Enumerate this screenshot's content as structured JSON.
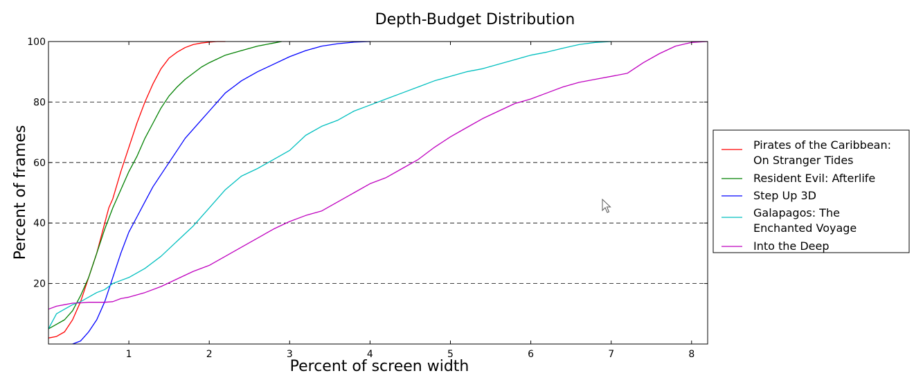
{
  "chart_data": {
    "type": "line",
    "title": "Depth-Budget Distribution",
    "xlabel": "Percent of screen width",
    "ylabel": "Percent of frames",
    "xlim": [
      0,
      8.2
    ],
    "ylim": [
      0,
      100
    ],
    "x_ticks": [
      "1",
      "2",
      "3",
      "4",
      "5",
      "6",
      "7",
      "8"
    ],
    "x_tick_values": [
      1,
      2,
      3,
      4,
      5,
      6,
      7,
      8
    ],
    "y_ticks": [
      "20",
      "40",
      "60",
      "80",
      "100"
    ],
    "y_tick_values": [
      20,
      40,
      60,
      80,
      100
    ],
    "grid": "horizontal dashed",
    "legend_position": "center-right, outside plot",
    "series": [
      {
        "name": "Pirates of the Caribbean:\nOn Stranger Tides",
        "color": "#ff0000",
        "x": [
          0,
          0.1,
          0.2,
          0.3,
          0.4,
          0.5,
          0.6,
          0.7,
          0.75,
          0.8,
          0.9,
          1.0,
          1.1,
          1.2,
          1.3,
          1.4,
          1.5,
          1.6,
          1.7,
          1.8,
          1.9,
          2.0,
          2.1,
          2.2
        ],
        "y": [
          2,
          2.5,
          4,
          8,
          14,
          22,
          30,
          40,
          45,
          48,
          57,
          65,
          73,
          80,
          86,
          91,
          94.5,
          96.5,
          98,
          99,
          99.5,
          99.8,
          100,
          100
        ]
      },
      {
        "name": "Resident Evil: Afterlife",
        "color": "#008000",
        "x": [
          0,
          0.1,
          0.2,
          0.3,
          0.4,
          0.5,
          0.6,
          0.7,
          0.8,
          0.9,
          1.0,
          1.1,
          1.2,
          1.3,
          1.4,
          1.5,
          1.6,
          1.7,
          1.8,
          1.9,
          2.0,
          2.2,
          2.4,
          2.6,
          2.8,
          2.9
        ],
        "y": [
          5,
          6.5,
          8,
          11,
          16,
          22,
          30,
          38,
          45,
          51,
          57,
          62,
          68,
          73,
          78,
          82,
          85,
          87.5,
          89.5,
          91.5,
          93,
          95.5,
          97,
          98.5,
          99.5,
          100
        ]
      },
      {
        "name": "Step Up 3D",
        "color": "#0000ff",
        "x": [
          0.3,
          0.4,
          0.5,
          0.6,
          0.7,
          0.8,
          0.9,
          1.0,
          1.1,
          1.2,
          1.3,
          1.4,
          1.5,
          1.6,
          1.7,
          1.8,
          1.9,
          2.0,
          2.1,
          2.2,
          2.3,
          2.4,
          2.6,
          2.8,
          3.0,
          3.2,
          3.4,
          3.6,
          3.8,
          4.0
        ],
        "y": [
          0,
          1,
          4,
          8,
          14,
          22,
          30,
          37,
          42,
          47,
          52,
          56,
          60,
          64,
          68,
          71,
          74,
          77,
          80,
          83,
          85,
          87,
          90,
          92.5,
          95,
          97,
          98.5,
          99.3,
          99.8,
          100
        ]
      },
      {
        "name": "Galapagos: The\nEnchanted Voyage",
        "color": "#00bfbf",
        "x": [
          0,
          0.1,
          0.2,
          0.3,
          0.4,
          0.5,
          0.6,
          0.7,
          0.8,
          0.9,
          1.0,
          1.2,
          1.4,
          1.6,
          1.8,
          2.0,
          2.2,
          2.4,
          2.6,
          2.8,
          3.0,
          3.2,
          3.4,
          3.6,
          3.8,
          4.0,
          4.2,
          4.4,
          4.6,
          4.8,
          5.0,
          5.2,
          5.4,
          5.6,
          5.8,
          6.0,
          6.2,
          6.4,
          6.6,
          6.8,
          7.0
        ],
        "y": [
          5,
          10,
          11.5,
          13,
          14,
          15.5,
          17,
          18,
          20,
          21,
          22,
          25,
          29,
          34,
          39,
          45,
          51,
          55.5,
          58,
          61,
          64,
          69,
          72,
          74,
          77,
          79,
          81,
          83,
          85,
          87,
          88.5,
          90,
          91,
          92.5,
          94,
          95.5,
          96.5,
          97.8,
          99,
          99.7,
          100
        ]
      },
      {
        "name": "Into the Deep",
        "color": "#bf00bf",
        "x": [
          0,
          0.1,
          0.2,
          0.3,
          0.4,
          0.5,
          0.6,
          0.7,
          0.8,
          0.9,
          1.0,
          1.2,
          1.4,
          1.6,
          1.8,
          2.0,
          2.2,
          2.4,
          2.6,
          2.8,
          3.0,
          3.2,
          3.4,
          3.6,
          3.8,
          4.0,
          4.2,
          4.4,
          4.6,
          4.8,
          5.0,
          5.2,
          5.4,
          5.6,
          5.8,
          6.0,
          6.2,
          6.4,
          6.6,
          6.8,
          7.0,
          7.2,
          7.4,
          7.6,
          7.8,
          8.0,
          8.2
        ],
        "y": [
          11.5,
          12.5,
          13,
          13.5,
          13.6,
          13.8,
          13.8,
          13.8,
          14,
          15,
          15.5,
          17,
          19,
          21.5,
          24,
          26,
          29,
          32,
          35,
          38,
          40.5,
          42.5,
          44,
          47,
          50,
          53,
          55,
          58,
          61,
          65,
          68.5,
          71.5,
          74.5,
          77,
          79.5,
          81,
          83,
          85,
          86.5,
          87.5,
          88.5,
          89.5,
          93,
          96,
          98.5,
          99.7,
          100
        ]
      }
    ]
  }
}
